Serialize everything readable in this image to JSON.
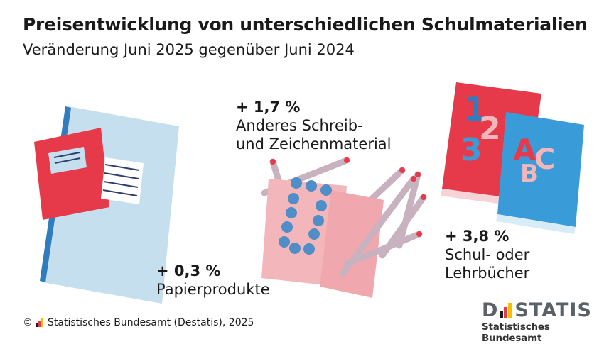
{
  "header": {
    "title": "Preisentwicklung von unterschiedlichen Schulmaterialien",
    "subtitle": "Veränderung Juni 2025 gegenüber Juni 2024"
  },
  "items": [
    {
      "value": "+ 0,3 %",
      "label": "Papierprodukte",
      "icon": "notebook-icon"
    },
    {
      "value": "+ 1,7 %",
      "label_line1": "Anderes Schreib-",
      "label_line2": "und Zeichenmaterial",
      "icon": "pencils-and-erasers-icon"
    },
    {
      "value": "+ 3,8 %",
      "label_line1": "Schul- oder",
      "label_line2": "Lehrbücher",
      "icon": "schoolbooks-icon"
    }
  ],
  "book_glyphs": {
    "front": [
      "1",
      "2",
      "3"
    ],
    "back": [
      "A",
      "B",
      "C"
    ]
  },
  "footer": {
    "copyright_symbol": "©",
    "source": "Statistisches Bundesamt (Destatis), 2025"
  },
  "brand": {
    "logo_text_left": "D",
    "logo_text_right": "STATIS",
    "name": "Statistisches Bundesamt"
  },
  "colors": {
    "red": "#e63a4b",
    "light_blue": "#c5dfee",
    "blue": "#3a9bd9",
    "pink": "#f3b6bb",
    "dark_blue": "#2f7cbf",
    "gray": "#5a6167"
  }
}
